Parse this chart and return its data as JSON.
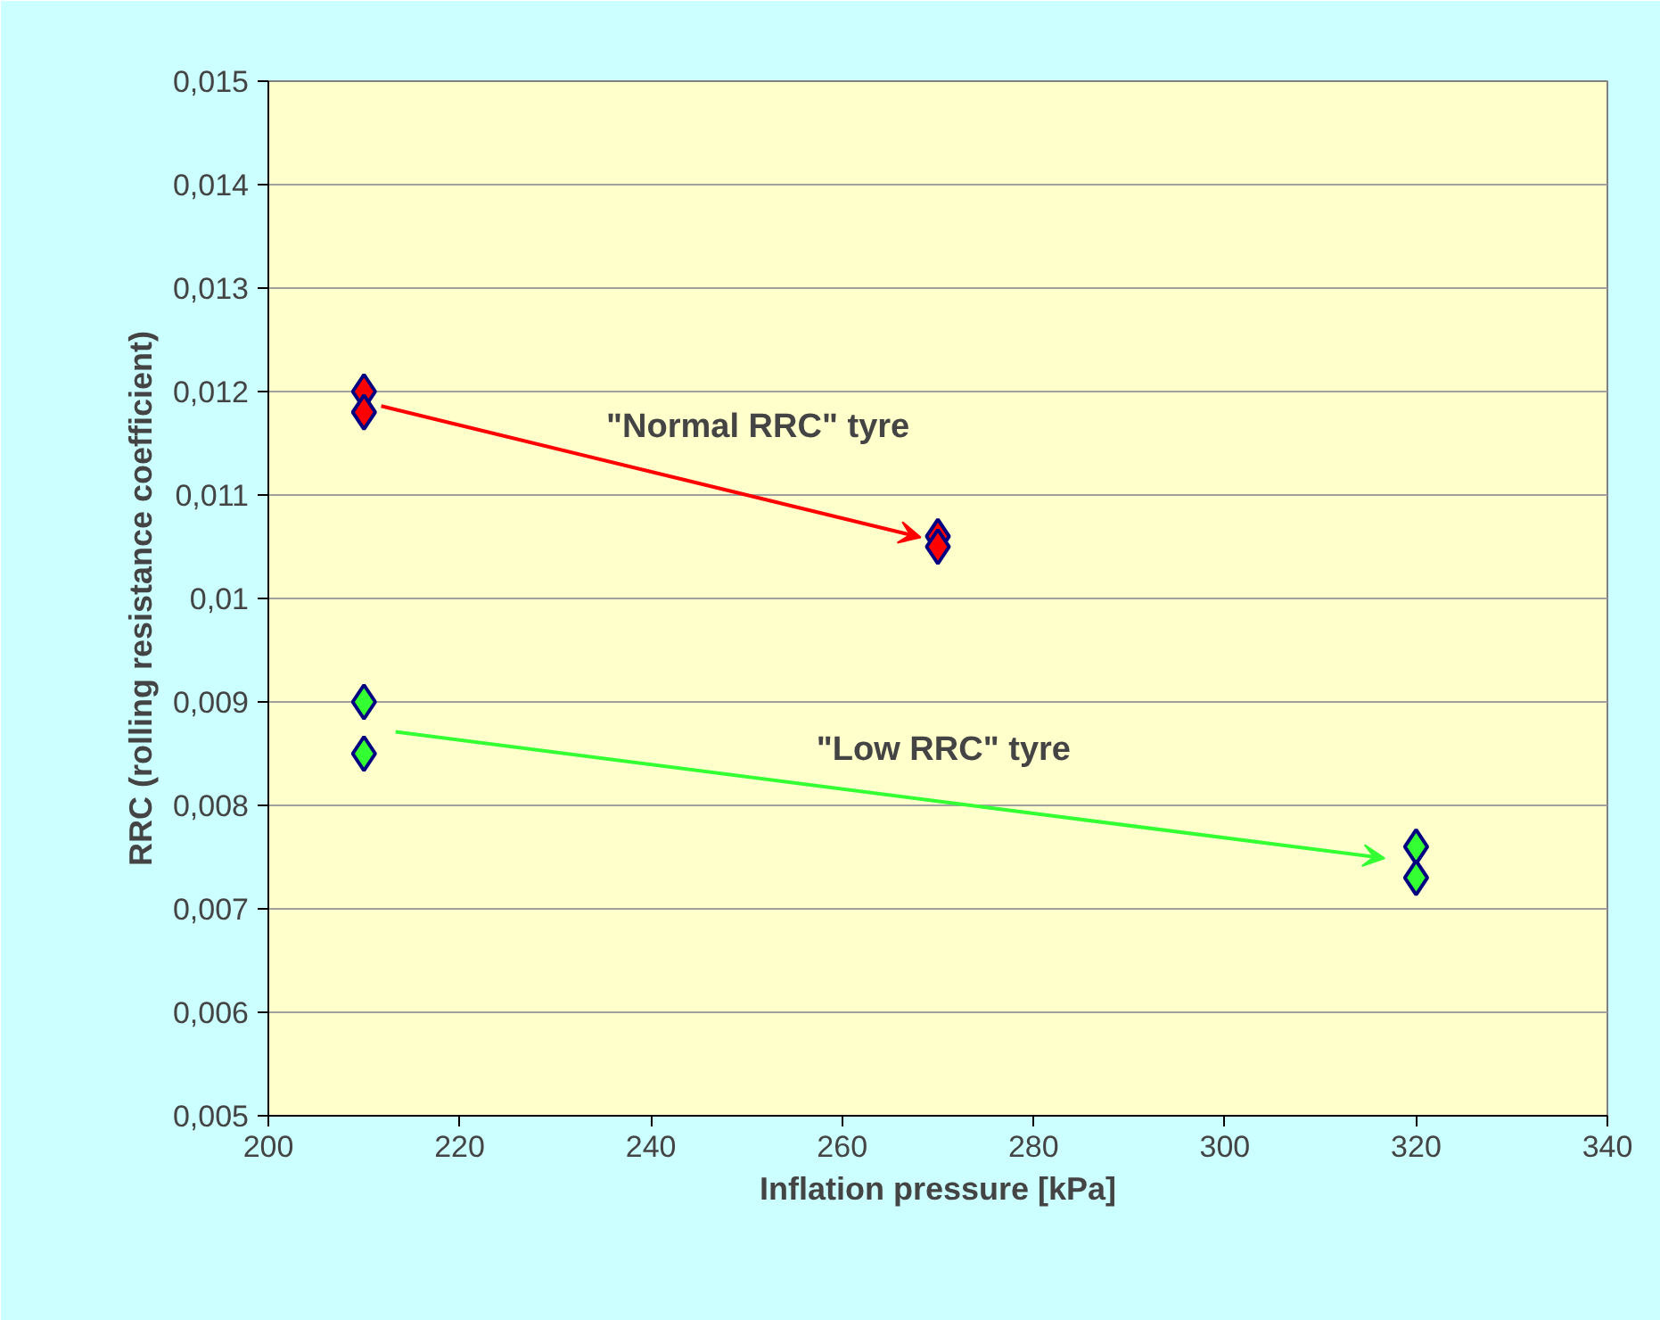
{
  "chart_data": {
    "type": "scatter",
    "xlabel": "Inflation pressure [kPa]",
    "ylabel": "RRC (rolling resistance coefficient)",
    "series": [
      {
        "color": "#ff0000",
        "x": [
          210,
          210,
          270,
          270
        ],
        "values": [
          0.012,
          0.0118,
          0.0106,
          0.0105
        ]
      },
      {
        "color": "#33ff33",
        "x": [
          210,
          210,
          320,
          320
        ],
        "values": [
          0.009,
          0.0085,
          0.0076,
          0.0073
        ]
      }
    ],
    "annotations": [
      "\"Normal RRC\" tyre",
      "\"Low RRC\" tyre"
    ],
    "xlim": [
      200,
      340
    ],
    "xticks": [
      200,
      220,
      240,
      260,
      280,
      300,
      320,
      340
    ],
    "ylim": [
      0.005,
      0.015
    ],
    "yticks": [
      {
        "value": 0.005,
        "label": "0,005"
      },
      {
        "value": 0.006,
        "label": "0,006"
      },
      {
        "value": 0.007,
        "label": "0,007"
      },
      {
        "value": 0.008,
        "label": "0,008"
      },
      {
        "value": 0.009,
        "label": "0,009"
      },
      {
        "value": 0.01,
        "label": "0,01"
      },
      {
        "value": 0.011,
        "label": "0,011"
      },
      {
        "value": 0.012,
        "label": "0,012"
      },
      {
        "value": 0.013,
        "label": "0,013"
      },
      {
        "value": 0.014,
        "label": "0,014"
      },
      {
        "value": 0.015,
        "label": "0,015"
      }
    ],
    "grid": "y",
    "marker": "diamond"
  }
}
